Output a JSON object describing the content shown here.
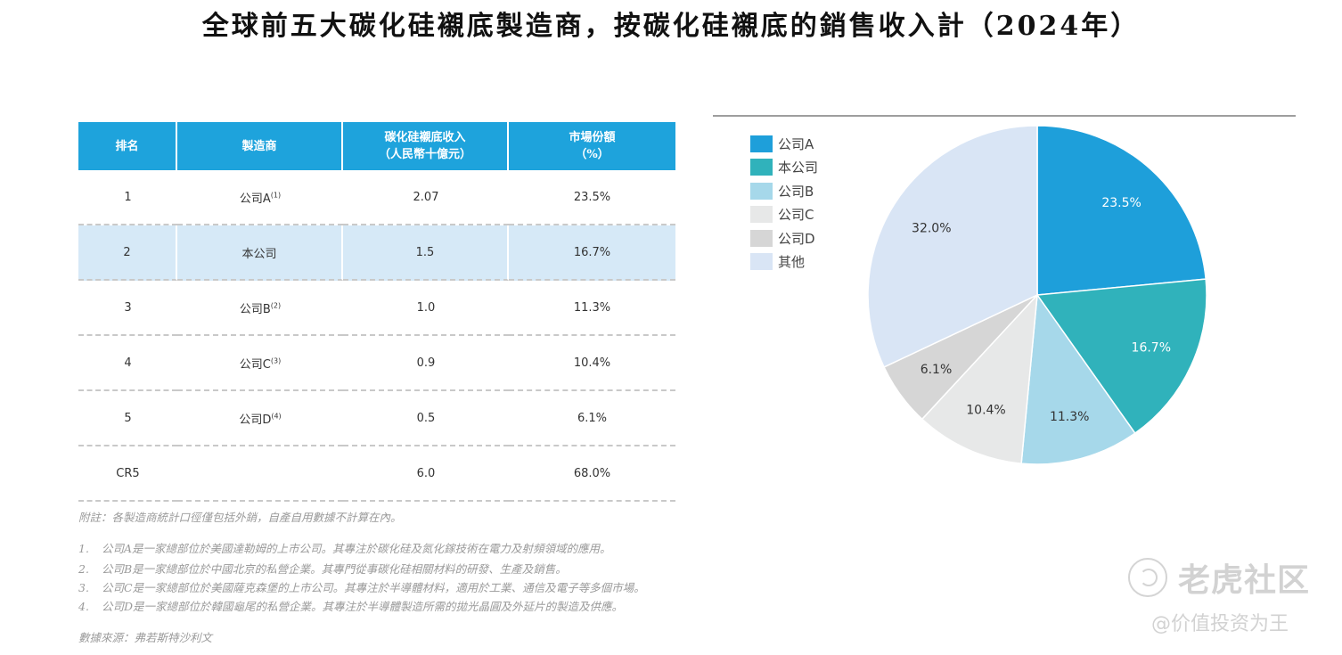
{
  "title": "全球前五大碳化硅襯底製造商，按碳化硅襯底的銷售收入計（2024年）",
  "table": {
    "headers": {
      "rank": "排名",
      "maker": "製造商",
      "revenue_l1": "碳化硅襯底收入",
      "revenue_l2": "（人民幣十億元）",
      "share_l1": "市場份額",
      "share_l2": "（%）"
    },
    "rows": [
      {
        "rank": "1",
        "maker": "公司A",
        "sup": "(1)",
        "revenue": "2.07",
        "share": "23.5%"
      },
      {
        "rank": "2",
        "maker": "本公司",
        "sup": "",
        "revenue": "1.5",
        "share": "16.7%"
      },
      {
        "rank": "3",
        "maker": "公司B",
        "sup": "(2)",
        "revenue": "1.0",
        "share": "11.3%"
      },
      {
        "rank": "4",
        "maker": "公司C",
        "sup": "(3)",
        "revenue": "0.9",
        "share": "10.4%"
      },
      {
        "rank": "5",
        "maker": "公司D",
        "sup": "(4)",
        "revenue": "0.5",
        "share": "6.1%"
      },
      {
        "rank": "CR5",
        "maker": "",
        "sup": "",
        "revenue": "6.0",
        "share": "68.0%"
      }
    ]
  },
  "notes": {
    "note": "附註：各製造商統計口徑僅包括外銷，自產自用數據不計算在內。",
    "footnotes": [
      {
        "num": "1.",
        "text": "公司A是一家總部位於美國達勒姆的上市公司。其專注於碳化硅及氮化鎵技術在電力及射頻領域的應用。"
      },
      {
        "num": "2.",
        "text": "公司B是一家總部位於中國北京的私營企業。其專門從事碳化硅相關材料的研發、生產及銷售。"
      },
      {
        "num": "3.",
        "text": "公司C是一家總部位於美國薩克森堡的上市公司。其專注於半導體材料，適用於工業、通信及電子等多個市場。"
      },
      {
        "num": "4.",
        "text": "公司D是一家總部位於韓國龜尾的私營企業。其專注於半導體製造所需的拋光晶圓及外延片的製造及供應。"
      }
    ],
    "source": "數據來源：弗若斯特沙利文"
  },
  "chart_data": {
    "type": "pie",
    "title": "",
    "legend_position": "left",
    "slices": [
      {
        "label": "公司A",
        "value": 23.5,
        "display": "23.5%",
        "color": "#1e9fda",
        "text_color": "#ffffff"
      },
      {
        "label": "本公司",
        "value": 16.7,
        "display": "16.7%",
        "color": "#30b2bb",
        "text_color": "#ffffff"
      },
      {
        "label": "公司B",
        "value": 11.3,
        "display": "11.3%",
        "color": "#a6d8ea",
        "text_color": "#333333"
      },
      {
        "label": "公司C",
        "value": 10.4,
        "display": "10.4%",
        "color": "#e7e8e8",
        "text_color": "#333333"
      },
      {
        "label": "公司D",
        "value": 6.1,
        "display": "6.1%",
        "color": "#d6d6d6",
        "text_color": "#333333"
      },
      {
        "label": "其他",
        "value": 32.0,
        "display": "32.0%",
        "color": "#d9e5f5",
        "text_color": "#333333"
      }
    ]
  },
  "watermark": {
    "brand": "老虎社区",
    "handle": "@价值投资为王"
  }
}
